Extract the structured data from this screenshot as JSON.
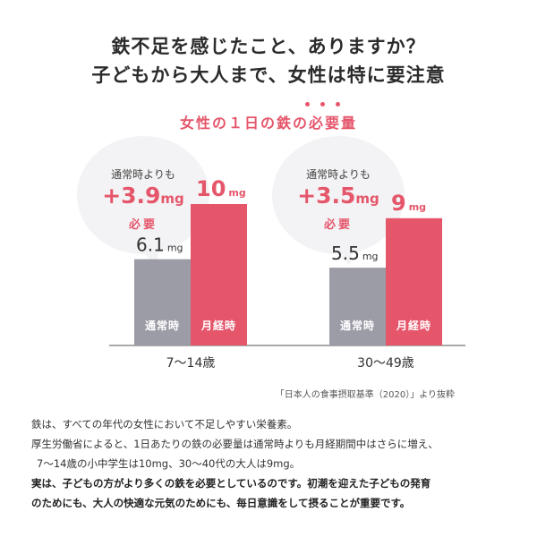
{
  "headline": {
    "line1": "鉄不足を感じたこと、ありますか？",
    "line2": "子どもから大人まで、女性は特に要注意"
  },
  "colors": {
    "normal_bar": "#9c9ca7",
    "period_bar": "#e5566b",
    "accent": "#e5566b",
    "axis": "#555555"
  },
  "chart_data": {
    "type": "bar",
    "title": "女性の１日の鉄の必要量",
    "title_emphasis": "必要",
    "categories": [
      "7～14歳",
      "30～49歳"
    ],
    "series": [
      {
        "name": "通常時",
        "values": [
          6.1,
          5.5
        ]
      },
      {
        "name": "月経時",
        "values": [
          10,
          9
        ]
      }
    ],
    "unit": "mg",
    "ylim": [
      0,
      10
    ],
    "data_labels": [
      [
        "6.1",
        "10"
      ],
      [
        "5.5",
        "9"
      ]
    ],
    "annotations": [
      {
        "lead": "通常時よりも",
        "value": "+3.9",
        "unit": "mg",
        "tail": "必要"
      },
      {
        "lead": "通常時よりも",
        "value": "+3.5",
        "unit": "mg",
        "tail": "必要"
      }
    ],
    "source": "「日本人の食事摂取基準（2020）」より抜粋"
  },
  "body": {
    "lines": [
      "鉄は、すべての年代の女性において不足しやすい栄養素。",
      "厚生労働省によると、1日あたりの鉄の必要量は通常時よりも月経期間中はさらに増え、",
      "7～14歳の小中学生は10mg、30～40代の大人は9mg。",
      "実は、子どもの方がより多くの鉄を必要としているのです。初潮を迎えた子どもの発育",
      "のためにも、大人の快適な元気のためにも、毎日意識をして摂ることが重要です。"
    ]
  }
}
